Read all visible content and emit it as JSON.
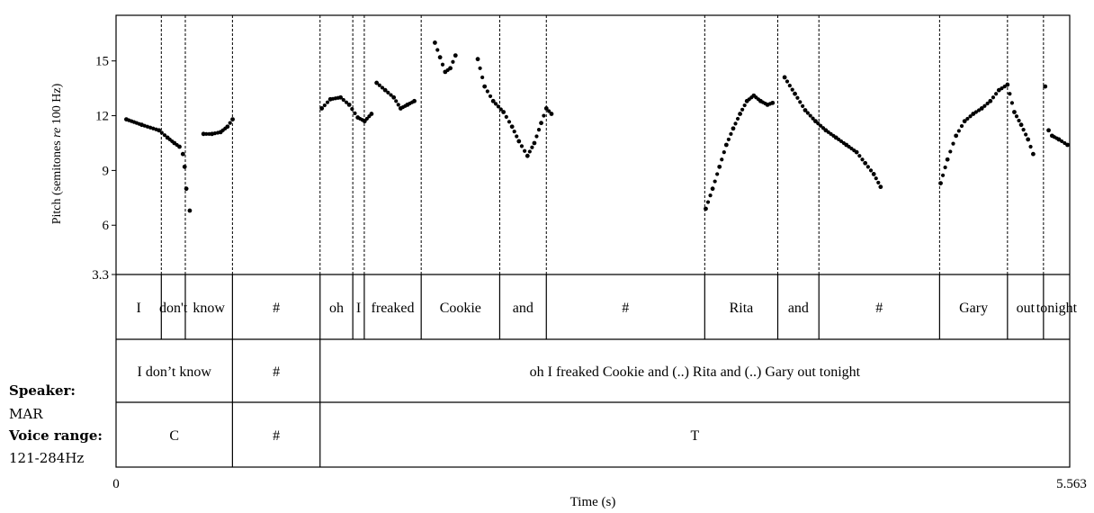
{
  "chart_data": {
    "type": "scatter",
    "xlabel": "Time (s)",
    "ylabel_main": "Pitch (semitones ",
    "ylabel_italic": "re",
    "ylabel_tail": " 100 Hz)",
    "xlim": [
      0,
      5.563
    ],
    "x_tick_labels": [
      "0",
      "5.563"
    ],
    "ylim": [
      3.3,
      17.5
    ],
    "y_ticks": [
      3.3,
      6,
      9,
      12,
      15
    ],
    "y_tick_labels": [
      "3.3",
      "6",
      "9",
      "12",
      "15"
    ],
    "word_boundaries": [
      0.264,
      0.404,
      0.679,
      1.19,
      1.381,
      1.448,
      1.78,
      2.238,
      2.51,
      3.434,
      3.86,
      4.1,
      4.804,
      5.2,
      5.41
    ],
    "words": [
      {
        "text": "I",
        "t0": 0.0,
        "t1": 0.264
      },
      {
        "text": "don't",
        "t0": 0.264,
        "t1": 0.404
      },
      {
        "text": "know",
        "t0": 0.404,
        "t1": 0.679
      },
      {
        "text": "#",
        "t0": 0.679,
        "t1": 1.19
      },
      {
        "text": "oh",
        "t0": 1.19,
        "t1": 1.381
      },
      {
        "text": "I",
        "t0": 1.381,
        "t1": 1.448
      },
      {
        "text": "freaked",
        "t0": 1.448,
        "t1": 1.78
      },
      {
        "text": "Cookie",
        "t0": 1.78,
        "t1": 2.238
      },
      {
        "text": "and",
        "t0": 2.238,
        "t1": 2.51
      },
      {
        "text": "#",
        "t0": 2.51,
        "t1": 3.434
      },
      {
        "text": "Rita",
        "t0": 3.434,
        "t1": 3.86
      },
      {
        "text": "and",
        "t0": 3.86,
        "t1": 4.1
      },
      {
        "text": "#",
        "t0": 4.1,
        "t1": 4.804
      },
      {
        "text": "Gary",
        "t0": 4.804,
        "t1": 5.2
      },
      {
        "text": "out",
        "t0": 5.2,
        "t1": 5.41
      },
      {
        "text": "tonight",
        "t0": 5.41,
        "t1": 5.563
      }
    ],
    "phrases": [
      {
        "text": "I don’t know",
        "t0": 0.0,
        "t1": 0.679
      },
      {
        "text": "#",
        "t0": 0.679,
        "t1": 1.19
      },
      {
        "text": "oh I freaked Cookie and (..) Rita and (..) Gary out tonight",
        "t0": 1.19,
        "t1": 5.563
      }
    ],
    "tones": [
      {
        "text": "C",
        "t0": 0.0,
        "t1": 0.679
      },
      {
        "text": "#",
        "t0": 0.679,
        "t1": 1.19
      },
      {
        "text": "T",
        "t0": 1.19,
        "t1": 5.563
      }
    ],
    "pitch_segments": [
      {
        "t": [
          0.06,
          0.15,
          0.25,
          0.3,
          0.34,
          0.37,
          0.39,
          0.4,
          0.41,
          0.43
        ],
        "v": [
          11.8,
          11.5,
          11.2,
          10.8,
          10.5,
          10.3,
          9.9,
          9.2,
          8.0,
          6.8
        ]
      },
      {
        "t": [
          0.51,
          0.56,
          0.61,
          0.65,
          0.68
        ],
        "v": [
          11.0,
          11.0,
          11.1,
          11.4,
          11.8
        ]
      },
      {
        "t": [
          1.2,
          1.25,
          1.31,
          1.36,
          1.41,
          1.45,
          1.49
        ],
        "v": [
          12.4,
          12.9,
          13.0,
          12.6,
          11.9,
          11.7,
          12.1
        ]
      },
      {
        "t": [
          1.52,
          1.57,
          1.62,
          1.66,
          1.7,
          1.74
        ],
        "v": [
          13.8,
          13.4,
          13.0,
          12.4,
          12.6,
          12.8
        ]
      },
      {
        "t": [
          1.86,
          1.89,
          1.92,
          1.95,
          1.98
        ],
        "v": [
          16.0,
          15.2,
          14.4,
          14.6,
          15.3
        ]
      },
      {
        "t": [
          2.11,
          2.15,
          2.2,
          2.26,
          2.31,
          2.35,
          2.4,
          2.44,
          2.48,
          2.51,
          2.54
        ],
        "v": [
          15.1,
          13.6,
          12.8,
          12.2,
          11.4,
          10.6,
          9.8,
          10.5,
          11.6,
          12.4,
          12.1
        ]
      },
      {
        "t": [
          3.44,
          3.48,
          3.52,
          3.56,
          3.6,
          3.64,
          3.68,
          3.72,
          3.76,
          3.8,
          3.83
        ],
        "v": [
          6.9,
          8.0,
          9.2,
          10.4,
          11.3,
          12.1,
          12.8,
          13.1,
          12.8,
          12.6,
          12.7
        ]
      },
      {
        "t": [
          3.9,
          3.96,
          4.02,
          4.08,
          4.14,
          4.2,
          4.26,
          4.32,
          4.37,
          4.42,
          4.46
        ],
        "v": [
          14.1,
          13.2,
          12.3,
          11.7,
          11.2,
          10.8,
          10.4,
          10.0,
          9.4,
          8.8,
          8.1
        ]
      },
      {
        "t": [
          4.81,
          4.85,
          4.9,
          4.95,
          5.0,
          5.05,
          5.1,
          5.15,
          5.2,
          5.24,
          5.28,
          5.32,
          5.35
        ],
        "v": [
          8.3,
          9.6,
          10.9,
          11.7,
          12.1,
          12.4,
          12.8,
          13.4,
          13.7,
          12.2,
          11.5,
          10.7,
          9.9
        ]
      },
      {
        "t": [
          5.42,
          5.44,
          5.46,
          5.5,
          5.55
        ],
        "v": [
          13.6,
          11.2,
          10.9,
          10.7,
          10.4
        ]
      }
    ]
  },
  "speaker": {
    "speaker_label": "Speaker:",
    "speaker_value": "MAR",
    "range_label": "Voice range:",
    "range_value": "121-284Hz"
  }
}
